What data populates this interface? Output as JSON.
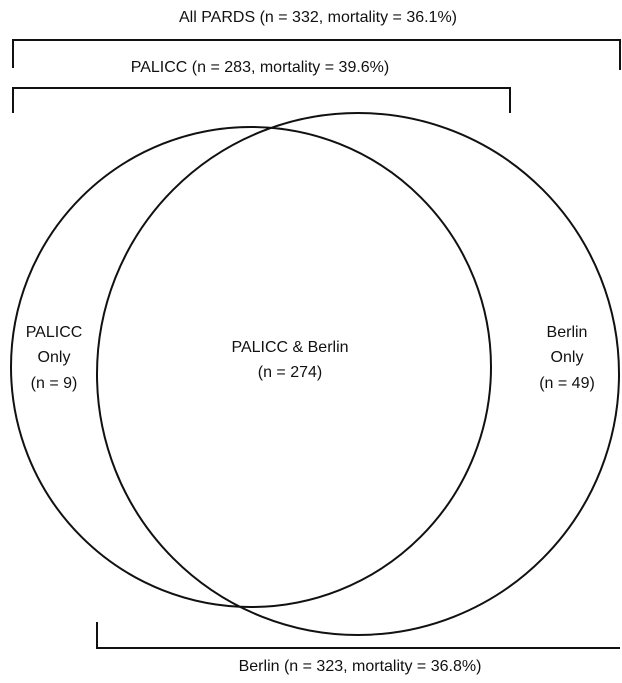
{
  "brackets": [
    {
      "label": "All PARDS (n = 332, mortality = 36.1%)"
    },
    {
      "label": "PALICC (n = 283, mortality = 39.6%)"
    },
    {
      "label": "Berlin (n = 323, mortality = 36.8%)"
    }
  ],
  "regions": [
    {
      "lines": [
        "PALICC",
        "Only",
        "(n = 9)"
      ]
    },
    {
      "lines": [
        "PALICC & Berlin",
        "(n = 274)"
      ]
    },
    {
      "lines": [
        "Berlin",
        "Only",
        "(n = 49)"
      ]
    }
  ]
}
